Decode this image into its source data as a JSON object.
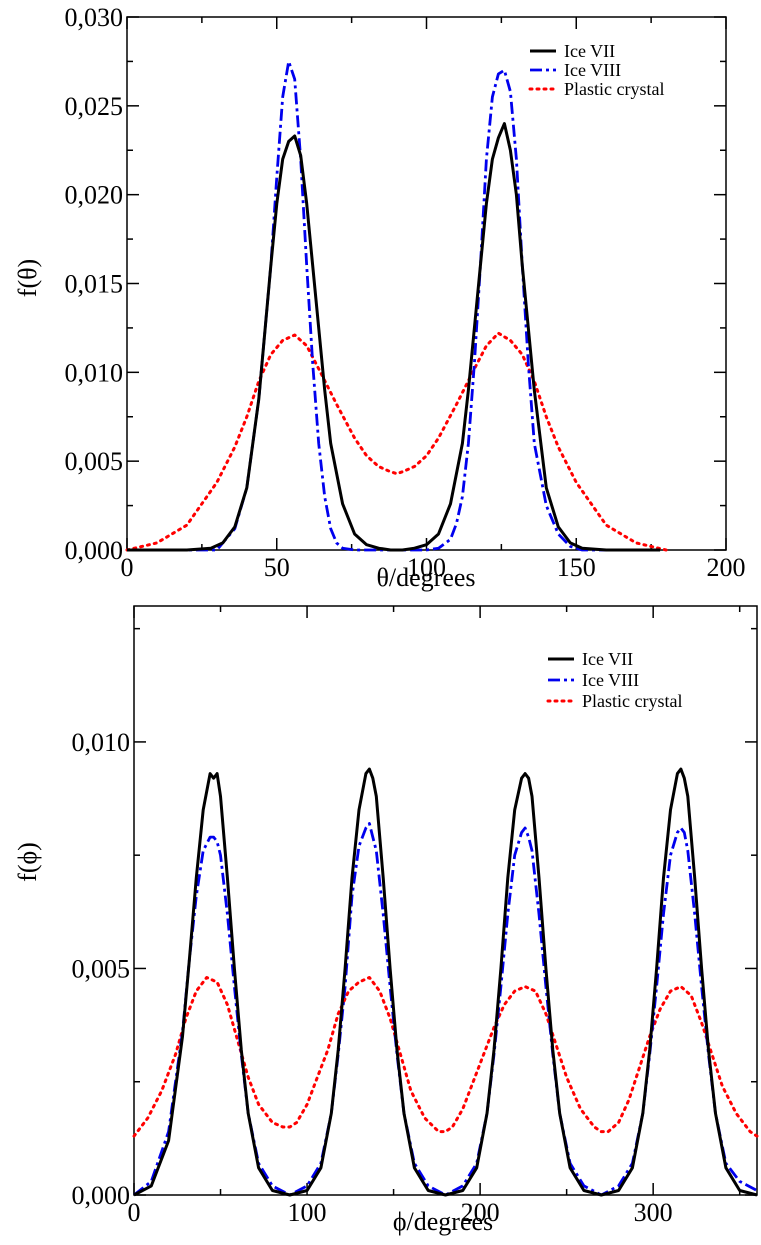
{
  "chart_data": [
    {
      "type": "line",
      "xlabel": "θ/degrees",
      "ylabel": "f(θ)",
      "xlim": [
        0,
        200
      ],
      "ylim": [
        0,
        0.03
      ],
      "xticks": [
        0,
        50,
        100,
        150,
        200
      ],
      "xtick_labels": [
        "0",
        "50",
        "100",
        "150",
        "200"
      ],
      "yticks": [
        0,
        0.005,
        0.01,
        0.015,
        0.02,
        0.025,
        0.03
      ],
      "ytick_labels": [
        "0,000",
        "0,005",
        "0,010",
        "0,015",
        "0,020",
        "0,025",
        "0,030"
      ],
      "legend_position": "top-right",
      "series": [
        {
          "name": "Ice VII",
          "color": "#000000",
          "style": "solid",
          "x": [
            0,
            20,
            28,
            32,
            36,
            40,
            44,
            48,
            50,
            52,
            54,
            56,
            58,
            60,
            62,
            64,
            66,
            68,
            72,
            76,
            80,
            84,
            88,
            92,
            96,
            100,
            104,
            108,
            112,
            114,
            116,
            118,
            120,
            122,
            124,
            126,
            128,
            130,
            132,
            134,
            136,
            140,
            144,
            148,
            152,
            160,
            178
          ],
          "y": [
            0,
            0,
            0.0001,
            0.0004,
            0.0013,
            0.0035,
            0.0085,
            0.016,
            0.0195,
            0.022,
            0.023,
            0.0233,
            0.0222,
            0.0195,
            0.016,
            0.0125,
            0.009,
            0.006,
            0.0026,
            0.0009,
            0.0003,
            0.0001,
            0,
            0,
            0.0001,
            0.0003,
            0.0009,
            0.0026,
            0.006,
            0.009,
            0.0125,
            0.016,
            0.0195,
            0.022,
            0.0232,
            0.024,
            0.0225,
            0.02,
            0.016,
            0.0125,
            0.009,
            0.0035,
            0.0013,
            0.0004,
            0.0001,
            0,
            0
          ]
        },
        {
          "name": "Ice VIII",
          "color": "#0000ee",
          "style": "dashdot",
          "x": [
            0,
            30,
            36,
            40,
            44,
            48,
            50,
            52,
            54,
            56,
            58,
            60,
            62,
            64,
            66,
            68,
            70,
            72,
            76,
            80,
            100,
            104,
            108,
            110,
            112,
            114,
            116,
            118,
            120,
            122,
            124,
            126,
            128,
            130,
            132,
            134,
            136,
            140,
            144,
            148,
            152,
            178
          ],
          "y": [
            0,
            0,
            0.0012,
            0.0035,
            0.0085,
            0.016,
            0.021,
            0.0255,
            0.0275,
            0.0265,
            0.022,
            0.016,
            0.0105,
            0.006,
            0.003,
            0.0012,
            0.0004,
            0.0001,
            0,
            0,
            0,
            0.0001,
            0.0006,
            0.0015,
            0.003,
            0.006,
            0.0105,
            0.016,
            0.022,
            0.0255,
            0.0268,
            0.027,
            0.0258,
            0.022,
            0.016,
            0.0105,
            0.006,
            0.0025,
            0.0009,
            0.0002,
            0,
            0
          ]
        },
        {
          "name": "Plastic crystal",
          "color": "#ff0000",
          "style": "dotted",
          "x": [
            0,
            10,
            20,
            30,
            36,
            40,
            44,
            48,
            52,
            56,
            60,
            64,
            70,
            76,
            80,
            84,
            88,
            90,
            92,
            96,
            100,
            104,
            110,
            116,
            120,
            124,
            128,
            132,
            136,
            140,
            144,
            150,
            160,
            170,
            180
          ],
          "y": [
            0,
            0.0004,
            0.0014,
            0.0038,
            0.0058,
            0.0075,
            0.0095,
            0.011,
            0.0118,
            0.0121,
            0.0115,
            0.0102,
            0.0082,
            0.0063,
            0.0053,
            0.0047,
            0.0044,
            0.0043,
            0.0044,
            0.0047,
            0.0053,
            0.0063,
            0.0082,
            0.0102,
            0.0115,
            0.0122,
            0.0118,
            0.011,
            0.0095,
            0.0075,
            0.0058,
            0.0038,
            0.0014,
            0.0004,
            0
          ]
        }
      ]
    },
    {
      "type": "line",
      "xlabel": "ϕ/degrees",
      "ylabel": "f(ϕ)",
      "xlim": [
        0,
        360
      ],
      "ylim": [
        0,
        0.013
      ],
      "xticks": [
        0,
        100,
        200,
        300
      ],
      "xtick_labels": [
        "0",
        "100",
        "200",
        "300"
      ],
      "yticks": [
        0,
        0.005,
        0.01
      ],
      "ytick_labels": [
        "0,000",
        "0,005",
        "0,010"
      ],
      "legend_position": "top-right",
      "series": [
        {
          "name": "Ice VII",
          "color": "#000000",
          "style": "solid",
          "x": [
            0,
            10,
            20,
            28,
            32,
            36,
            40,
            44,
            46,
            48,
            50,
            54,
            58,
            62,
            66,
            72,
            80,
            90,
            100,
            108,
            114,
            118,
            122,
            126,
            130,
            134,
            136,
            138,
            140,
            144,
            148,
            152,
            156,
            162,
            170,
            180,
            190,
            198,
            204,
            208,
            212,
            216,
            220,
            224,
            226,
            228,
            230,
            234,
            238,
            242,
            246,
            252,
            260,
            270,
            280,
            288,
            294,
            298,
            302,
            306,
            310,
            314,
            316,
            318,
            320,
            324,
            328,
            332,
            336,
            342,
            350,
            360
          ],
          "y": [
            0,
            0.0002,
            0.0012,
            0.0035,
            0.0052,
            0.007,
            0.0085,
            0.0093,
            0.0092,
            0.0093,
            0.0088,
            0.007,
            0.005,
            0.0032,
            0.0018,
            0.0006,
            0.0001,
            0,
            0.0001,
            0.0006,
            0.0018,
            0.0032,
            0.005,
            0.007,
            0.0085,
            0.0093,
            0.0094,
            0.0092,
            0.0088,
            0.007,
            0.005,
            0.0032,
            0.0018,
            0.0006,
            0.0001,
            0,
            0.0001,
            0.0006,
            0.0018,
            0.0032,
            0.005,
            0.007,
            0.0085,
            0.0092,
            0.0093,
            0.0092,
            0.0088,
            0.007,
            0.005,
            0.0032,
            0.0018,
            0.0006,
            0.0001,
            0,
            0.0001,
            0.0006,
            0.0018,
            0.0032,
            0.005,
            0.007,
            0.0085,
            0.0093,
            0.0094,
            0.0092,
            0.0088,
            0.007,
            0.005,
            0.0032,
            0.0018,
            0.0006,
            0.0001,
            0
          ]
        },
        {
          "name": "Ice VIII",
          "color": "#0000ee",
          "style": "dashdot",
          "x": [
            0,
            10,
            20,
            28,
            32,
            36,
            40,
            44,
            46,
            48,
            50,
            54,
            58,
            62,
            66,
            72,
            80,
            90,
            100,
            108,
            114,
            118,
            122,
            126,
            130,
            134,
            136,
            138,
            140,
            144,
            148,
            152,
            156,
            162,
            170,
            180,
            190,
            198,
            204,
            208,
            212,
            216,
            220,
            224,
            226,
            228,
            230,
            234,
            238,
            242,
            246,
            252,
            260,
            270,
            280,
            288,
            294,
            298,
            302,
            306,
            310,
            314,
            316,
            318,
            320,
            324,
            328,
            332,
            336,
            342,
            350,
            360
          ],
          "y": [
            0,
            0.0003,
            0.0014,
            0.0036,
            0.0052,
            0.0066,
            0.0076,
            0.0079,
            0.0079,
            0.0078,
            0.0075,
            0.0062,
            0.0046,
            0.0031,
            0.0018,
            0.0007,
            0.0002,
            0,
            0.0002,
            0.0007,
            0.0018,
            0.0031,
            0.0046,
            0.0066,
            0.0077,
            0.0081,
            0.0082,
            0.0079,
            0.0076,
            0.0062,
            0.0046,
            0.0031,
            0.0018,
            0.0007,
            0.0002,
            0,
            0.0002,
            0.0007,
            0.0018,
            0.0031,
            0.0046,
            0.0062,
            0.0075,
            0.008,
            0.0081,
            0.0079,
            0.0076,
            0.0062,
            0.0046,
            0.0031,
            0.0018,
            0.0007,
            0.0002,
            0,
            0.0002,
            0.0007,
            0.0018,
            0.0031,
            0.0046,
            0.0062,
            0.0075,
            0.008,
            0.0081,
            0.008,
            0.0076,
            0.0062,
            0.0046,
            0.0031,
            0.0018,
            0.0007,
            0.0003,
            0.0001
          ]
        },
        {
          "name": "Plastic crystal",
          "color": "#ff0000",
          "style": "dotted",
          "x": [
            0,
            8,
            16,
            24,
            30,
            36,
            42,
            48,
            54,
            60,
            66,
            72,
            80,
            86,
            90,
            94,
            100,
            106,
            112,
            118,
            124,
            130,
            136,
            142,
            148,
            154,
            160,
            168,
            176,
            180,
            184,
            190,
            196,
            202,
            208,
            214,
            220,
            226,
            232,
            238,
            244,
            250,
            258,
            266,
            270,
            274,
            280,
            286,
            292,
            298,
            304,
            310,
            316,
            322,
            328,
            334,
            340,
            348,
            356,
            360
          ],
          "y": [
            0.0013,
            0.0017,
            0.0023,
            0.0031,
            0.0039,
            0.0045,
            0.0048,
            0.0047,
            0.0042,
            0.0034,
            0.0026,
            0.002,
            0.0016,
            0.0015,
            0.0015,
            0.0016,
            0.002,
            0.0026,
            0.0032,
            0.004,
            0.0045,
            0.0047,
            0.0048,
            0.0045,
            0.0039,
            0.0031,
            0.0023,
            0.0017,
            0.0014,
            0.0014,
            0.0015,
            0.0019,
            0.0025,
            0.0031,
            0.0037,
            0.0042,
            0.0045,
            0.0046,
            0.0045,
            0.004,
            0.0033,
            0.0026,
            0.0019,
            0.0015,
            0.0014,
            0.0014,
            0.0016,
            0.0021,
            0.0028,
            0.0035,
            0.0041,
            0.0045,
            0.0046,
            0.0044,
            0.0038,
            0.0031,
            0.0024,
            0.0018,
            0.0014,
            0.0013
          ]
        }
      ]
    }
  ]
}
